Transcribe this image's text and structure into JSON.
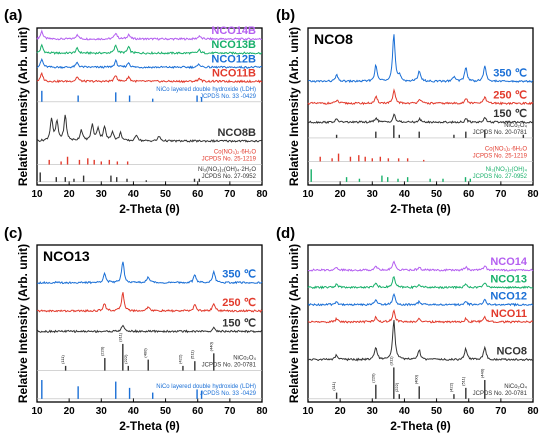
{
  "chart_data": [
    {
      "panel": "(a)",
      "type": "line",
      "xlabel": "2-Theta (θ)",
      "ylabel": "Relative Intensity (Arb. unit)",
      "xlim": [
        10,
        80
      ],
      "xticks": [
        10,
        20,
        30,
        40,
        50,
        60,
        70,
        80
      ],
      "series": [
        {
          "name": "NCO14B",
          "color": "#b45ff0",
          "base": 0.93,
          "peaks": [
            [
              11.5,
              0.05
            ],
            [
              22.5,
              0.03
            ],
            [
              34.5,
              0.04
            ],
            [
              38.5,
              0.03
            ],
            [
              60.5,
              0.02
            ]
          ]
        },
        {
          "name": "NCO13B",
          "color": "#18b06a",
          "base": 0.84,
          "peaks": [
            [
              11.5,
              0.05
            ],
            [
              22.5,
              0.03
            ],
            [
              34.5,
              0.05
            ],
            [
              38.5,
              0.04
            ],
            [
              60.5,
              0.02
            ]
          ]
        },
        {
          "name": "NCO12B",
          "color": "#1a6fd6",
          "base": 0.75,
          "peaks": [
            [
              11.5,
              0.05
            ],
            [
              22.5,
              0.03
            ],
            [
              34.5,
              0.04
            ],
            [
              38.5,
              0.03
            ],
            [
              60.5,
              0.02
            ]
          ]
        },
        {
          "name": "NCO11B",
          "color": "#e23a2c",
          "base": 0.66,
          "peaks": [
            [
              11.5,
              0.05
            ],
            [
              22.5,
              0.03
            ],
            [
              34.5,
              0.04
            ],
            [
              38.5,
              0.03
            ],
            [
              60.5,
              0.02
            ]
          ]
        },
        {
          "name": "NCO8B",
          "color": "#333333",
          "base": 0.28,
          "peaks": [
            [
              14.5,
              0.14
            ],
            [
              16.2,
              0.12
            ],
            [
              18.8,
              0.16
            ],
            [
              23.8,
              0.07
            ],
            [
              27.2,
              0.1
            ],
            [
              29.0,
              0.08
            ],
            [
              31.0,
              0.09
            ],
            [
              33.5,
              0.06
            ],
            [
              36.0,
              0.05
            ],
            [
              41.0,
              0.04
            ],
            [
              48.0,
              0.03
            ]
          ]
        }
      ],
      "references": [
        {
          "label_lines": [
            "NiCo layered double hydroxide (LDH)",
            "JCPDS No. 33 -0429"
          ],
          "color": "#1a6fd6",
          "base": 0.53,
          "sticks": [
            [
              11.5,
              0.07
            ],
            [
              22.8,
              0.04
            ],
            [
              34.5,
              0.06
            ],
            [
              38.8,
              0.04
            ],
            [
              46.0,
              0.02
            ],
            [
              59.8,
              0.04
            ],
            [
              61.2,
              0.03
            ]
          ]
        },
        {
          "label_lines": [
            "Co(NO₃)₂·6H₂O",
            "JCPDS No. 25-1219"
          ],
          "color": "#e23a2c",
          "base": 0.13,
          "sticks": [
            [
              13.8,
              0.03
            ],
            [
              17.5,
              0.02
            ],
            [
              19.5,
              0.05
            ],
            [
              23.2,
              0.03
            ],
            [
              25.8,
              0.04
            ],
            [
              27.8,
              0.03
            ],
            [
              30.0,
              0.02
            ],
            [
              32.5,
              0.03
            ],
            [
              35.0,
              0.02
            ],
            [
              38.2,
              0.02
            ]
          ]
        },
        {
          "label_lines": [
            "Ni₃(NO₃)₂(OH)₄·2H₂O",
            "JCPDS No. 27-0952"
          ],
          "color": "#333333",
          "base": 0.02,
          "sticks": [
            [
              11.0,
              0.06
            ],
            [
              16.0,
              0.03
            ],
            [
              18.8,
              0.03
            ],
            [
              21.5,
              0.02
            ],
            [
              24.5,
              0.04
            ],
            [
              33.0,
              0.04
            ],
            [
              34.8,
              0.03
            ],
            [
              38.0,
              0.02
            ],
            [
              44.0,
              0.01
            ],
            [
              59.0,
              0.02
            ],
            [
              60.5,
              0.02
            ]
          ]
        }
      ]
    },
    {
      "panel": "(b)",
      "type": "line",
      "title": "NCO8",
      "xlabel": "2-Theta (θ)",
      "ylabel": "Relative Intensity (Arb. unit)",
      "xlim": [
        10,
        80
      ],
      "xticks": [
        10,
        20,
        30,
        40,
        50,
        60,
        70,
        80
      ],
      "series": [
        {
          "name": "350 ℃",
          "color": "#1a6fd6",
          "base": 0.66,
          "peaks": [
            [
              18.9,
              0.04
            ],
            [
              31.1,
              0.1
            ],
            [
              36.7,
              0.3
            ],
            [
              38.5,
              0.03
            ],
            [
              44.6,
              0.07
            ],
            [
              55.4,
              0.03
            ],
            [
              59.1,
              0.09
            ],
            [
              65.0,
              0.1
            ]
          ]
        },
        {
          "name": "250 ℃",
          "color": "#e23a2c",
          "base": 0.52,
          "peaks": [
            [
              19.0,
              0.02
            ],
            [
              31.2,
              0.04
            ],
            [
              36.8,
              0.08
            ],
            [
              44.7,
              0.03
            ],
            [
              59.2,
              0.03
            ],
            [
              65.0,
              0.04
            ]
          ]
        },
        {
          "name": "150 ℃",
          "color": "#333333",
          "base": 0.4,
          "peaks": [
            [
              19.0,
              0.02
            ],
            [
              31.2,
              0.03
            ],
            [
              36.8,
              0.05
            ],
            [
              44.7,
              0.02
            ],
            [
              59.2,
              0.02
            ],
            [
              65.0,
              0.03
            ]
          ]
        }
      ],
      "references": [
        {
          "label_lines": [
            "NiCo₂O₄",
            "JCPDS No. 20-0781"
          ],
          "color": "#333333",
          "base": 0.3,
          "sticks": [
            [
              18.9,
              0.02
            ],
            [
              31.1,
              0.04
            ],
            [
              36.7,
              0.08
            ],
            [
              38.4,
              0.02
            ],
            [
              44.6,
              0.04
            ],
            [
              55.4,
              0.02
            ],
            [
              59.1,
              0.04
            ],
            [
              65.0,
              0.05
            ],
            [
              77.0,
              0.02
            ]
          ]
        },
        {
          "label_lines": [
            "Co(NO₃)₂·6H₂O",
            "JCPDS No. 25-1219"
          ],
          "color": "#e23a2c",
          "base": 0.15,
          "sticks": [
            [
              13.8,
              0.03
            ],
            [
              17.5,
              0.02
            ],
            [
              19.5,
              0.05
            ],
            [
              23.2,
              0.03
            ],
            [
              25.8,
              0.04
            ],
            [
              27.8,
              0.03
            ],
            [
              30.0,
              0.02
            ],
            [
              32.5,
              0.03
            ],
            [
              35.0,
              0.02
            ],
            [
              38.2,
              0.02
            ],
            [
              41.0,
              0.02
            ],
            [
              46.0,
              0.01
            ]
          ]
        },
        {
          "label_lines": [
            "Ni₃(NO₃)₂(OH)₄",
            "JCPDS No. 27-0952"
          ],
          "color": "#18b06a",
          "base": 0.02,
          "sticks": [
            [
              11.0,
              0.08
            ],
            [
              22.0,
              0.03
            ],
            [
              26.0,
              0.02
            ],
            [
              33.0,
              0.04
            ],
            [
              34.8,
              0.03
            ],
            [
              38.0,
              0.02
            ],
            [
              41.0,
              0.03
            ],
            [
              48.0,
              0.02
            ],
            [
              52.0,
              0.02
            ],
            [
              59.0,
              0.03
            ],
            [
              60.5,
              0.02
            ]
          ]
        }
      ]
    },
    {
      "panel": "(c)",
      "type": "line",
      "title": "NCO13",
      "xlabel": "2-Theta (θ)",
      "ylabel": "Relative Intensity (Arb. unit)",
      "xlim": [
        10,
        80
      ],
      "xticks": [
        10,
        20,
        30,
        40,
        50,
        60,
        70,
        80
      ],
      "series": [
        {
          "name": "350 ℃",
          "color": "#1a6fd6",
          "base": 0.76,
          "peaks": [
            [
              31.0,
              0.06
            ],
            [
              36.7,
              0.14
            ],
            [
              44.6,
              0.04
            ],
            [
              59.1,
              0.05
            ],
            [
              65.0,
              0.07
            ]
          ]
        },
        {
          "name": "250 ℃",
          "color": "#e23a2c",
          "base": 0.58,
          "peaks": [
            [
              31.0,
              0.05
            ],
            [
              36.7,
              0.12
            ],
            [
              44.6,
              0.03
            ],
            [
              59.1,
              0.04
            ],
            [
              65.0,
              0.05
            ]
          ]
        },
        {
          "name": "150 ℃",
          "color": "#333333",
          "base": 0.45,
          "peaks": [
            [
              36.7,
              0.04
            ],
            [
              65.0,
              0.02
            ]
          ]
        }
      ],
      "references": [
        {
          "label_lines": [
            "NiCo₂O₄",
            "JCPDS No. 20-0781"
          ],
          "color": "#333333",
          "base": 0.2,
          "hkl": true,
          "sticks": [
            [
              18.9,
              0.03,
              "(111)"
            ],
            [
              31.1,
              0.08,
              "(220)"
            ],
            [
              36.7,
              0.17,
              "(311)"
            ],
            [
              38.4,
              0.03,
              "(222)"
            ],
            [
              44.6,
              0.07,
              "(400)"
            ],
            [
              55.4,
              0.03,
              "(422)"
            ],
            [
              59.1,
              0.06,
              "(511)"
            ],
            [
              65.0,
              0.11,
              "(440)"
            ]
          ]
        },
        {
          "label_lines": [
            "NiCo layered double hydroxide (LDH)",
            "JCPDS No. 33 -0429"
          ],
          "color": "#1a6fd6",
          "base": 0.02,
          "sticks": [
            [
              11.5,
              0.12
            ],
            [
              22.8,
              0.08
            ],
            [
              34.5,
              0.11
            ],
            [
              38.8,
              0.07
            ],
            [
              46.0,
              0.04
            ],
            [
              59.8,
              0.06
            ],
            [
              61.2,
              0.05
            ]
          ]
        }
      ]
    },
    {
      "panel": "(d)",
      "type": "line",
      "xlabel": "2-Theta (θ)",
      "ylabel": "Relative Intensity (Arb. unit)",
      "xlim": [
        10,
        80
      ],
      "xticks": [
        10,
        20,
        30,
        40,
        50,
        60,
        70,
        80
      ],
      "series": [
        {
          "name": "NCO14",
          "color": "#b45ff0",
          "base": 0.84,
          "peaks": [
            [
              18.9,
              0.02
            ],
            [
              31.1,
              0.03
            ],
            [
              36.7,
              0.06
            ],
            [
              44.6,
              0.02
            ],
            [
              59.1,
              0.02
            ],
            [
              65.0,
              0.03
            ]
          ]
        },
        {
          "name": "NCO13",
          "color": "#18b06a",
          "base": 0.73,
          "peaks": [
            [
              18.9,
              0.02
            ],
            [
              31.1,
              0.03
            ],
            [
              36.7,
              0.07
            ],
            [
              44.6,
              0.02
            ],
            [
              59.1,
              0.02
            ],
            [
              65.0,
              0.03
            ]
          ]
        },
        {
          "name": "NCO12",
          "color": "#1a6fd6",
          "base": 0.62,
          "peaks": [
            [
              18.9,
              0.02
            ],
            [
              31.1,
              0.03
            ],
            [
              36.7,
              0.07
            ],
            [
              44.6,
              0.02
            ],
            [
              59.1,
              0.02
            ],
            [
              65.0,
              0.03
            ]
          ]
        },
        {
          "name": "NCO11",
          "color": "#e23a2c",
          "base": 0.51,
          "peaks": [
            [
              18.9,
              0.02
            ],
            [
              31.1,
              0.03
            ],
            [
              36.7,
              0.07
            ],
            [
              44.6,
              0.02
            ],
            [
              59.1,
              0.02
            ],
            [
              65.0,
              0.03
            ]
          ]
        },
        {
          "name": "NCO8",
          "color": "#333333",
          "base": 0.27,
          "peaks": [
            [
              18.9,
              0.03
            ],
            [
              31.1,
              0.08
            ],
            [
              36.7,
              0.25
            ],
            [
              44.6,
              0.06
            ],
            [
              59.1,
              0.07
            ],
            [
              65.0,
              0.08
            ]
          ]
        }
      ],
      "references": [
        {
          "label_lines": [
            "NiCo₂O₄",
            "JCPDS No. 20-0781"
          ],
          "color": "#333333",
          "base": 0.02,
          "hkl": true,
          "sticks": [
            [
              18.9,
              0.04,
              "(111)"
            ],
            [
              31.1,
              0.09,
              "(220)"
            ],
            [
              36.7,
              0.2,
              "(311)"
            ],
            [
              38.4,
              0.03,
              "(222)"
            ],
            [
              44.6,
              0.08,
              "(400)"
            ],
            [
              55.4,
              0.03,
              "(422)"
            ],
            [
              59.1,
              0.07,
              "(511)"
            ],
            [
              65.0,
              0.12,
              "(440)"
            ]
          ]
        }
      ]
    }
  ]
}
